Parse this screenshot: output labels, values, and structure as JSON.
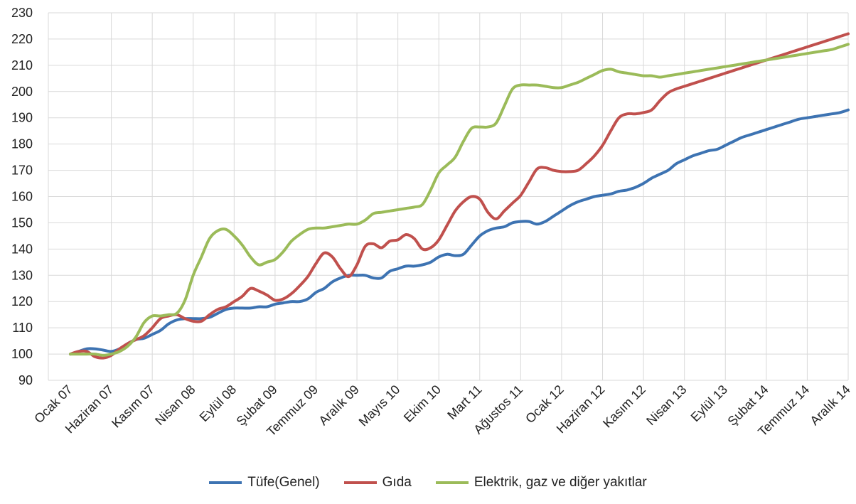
{
  "chart_data": {
    "type": "line",
    "ylim": [
      90,
      230
    ],
    "yticks": [
      90,
      100,
      110,
      120,
      130,
      140,
      150,
      160,
      170,
      180,
      190,
      200,
      210,
      220,
      230
    ],
    "x_tick_labels": [
      "Ocak 07",
      "Haziran 07",
      "Kasım 07",
      "Nisan 08",
      "Eylül 08",
      "Şubat 09",
      "Temmuz 09",
      "Aralık 09",
      "Mayıs 10",
      "Ekim 10",
      "Mart 11",
      "Ağustos 11",
      "Ocak 12",
      "Haziran 12",
      "Kasım 12",
      "Nisan 13",
      "Eylül 13",
      "Şubat 14",
      "Temmuz 14",
      "Aralık 14"
    ],
    "x_tick_months": [
      0,
      5,
      10,
      15,
      20,
      25,
      30,
      35,
      40,
      45,
      50,
      55,
      60,
      65,
      70,
      75,
      80,
      85,
      90,
      95
    ],
    "months": 96,
    "grid": true,
    "legend_position": "bottom",
    "series": [
      {
        "name": "Tüfe(Genel)",
        "color": "#3d73b2",
        "values": [
          100,
          101,
          102,
          102,
          101.5,
          101,
          102,
          104,
          105.5,
          106,
          107.5,
          109,
          111.5,
          113,
          113.5,
          113.5,
          113.5,
          114,
          115.5,
          117,
          117.5,
          117.5,
          117.5,
          118,
          118,
          119,
          119.5,
          120,
          120,
          121,
          123.5,
          125,
          127.5,
          129,
          130,
          130,
          130,
          129,
          129,
          131.5,
          132.5,
          133.5,
          133.5,
          134,
          135,
          137,
          138,
          137.5,
          138,
          141.5,
          145,
          147,
          148,
          148.5,
          150,
          150.5,
          150.5,
          149.5,
          150.5,
          152.5,
          154.5,
          156.5,
          158,
          159,
          160,
          160.5,
          161,
          162,
          162.5,
          163.5,
          165,
          167,
          168.5,
          170,
          172.5,
          174,
          175.5,
          176.5,
          177.5,
          178,
          179.5,
          181,
          182.5,
          183.5,
          184.5,
          185.5,
          186.5,
          187.5,
          188.5,
          189.5,
          190,
          190.5,
          191,
          191.5,
          192,
          193
        ]
      },
      {
        "name": "Gıda",
        "color": "#c0504d",
        "values": [
          100,
          101,
          101,
          99,
          98.5,
          99.5,
          102,
          104,
          105.5,
          107,
          110,
          113.5,
          114.5,
          115,
          113.5,
          112.5,
          112.5,
          115,
          117,
          118,
          120,
          122,
          125,
          124,
          122.5,
          120.5,
          121,
          123,
          126,
          129.5,
          134.5,
          138.5,
          137,
          132.5,
          129.5,
          134,
          141,
          142,
          140.5,
          143,
          143.5,
          145.5,
          144,
          140,
          140.5,
          143.5,
          149,
          154.5,
          158,
          160,
          159,
          154,
          151.5,
          154.5,
          157.5,
          160.5,
          165.5,
          170.5,
          171,
          170,
          169.5,
          169.5,
          170,
          172.5,
          175.5,
          179.5,
          185,
          190,
          191.5,
          191.5,
          192,
          193,
          196.5,
          199.5,
          201,
          202,
          203,
          204,
          205,
          206,
          207,
          208,
          209,
          210,
          211,
          212,
          213,
          214,
          215,
          216,
          217,
          218,
          219,
          220,
          221,
          222
        ]
      },
      {
        "name": "Elektrik, gaz ve diğer yakıtlar",
        "color": "#9bbb59",
        "values": [
          100,
          100,
          100,
          100,
          99.5,
          100,
          101,
          103,
          106.5,
          112,
          114.5,
          114.5,
          115,
          115.5,
          120.5,
          130,
          137,
          144,
          147,
          147.5,
          145,
          141.5,
          137,
          134,
          135,
          136,
          139,
          143,
          145.5,
          147.5,
          148,
          148,
          148.5,
          149,
          149.5,
          149.5,
          151,
          153.5,
          154,
          154.5,
          155,
          155.5,
          156,
          157,
          162.5,
          169,
          172,
          175,
          181,
          186,
          186.5,
          186.5,
          188,
          194.5,
          201,
          202.5,
          202.5,
          202.5,
          202,
          201.5,
          201.5,
          202.5,
          203.5,
          205,
          206.5,
          208,
          208.5,
          207.5,
          207,
          206.5,
          206,
          206,
          205.5,
          206,
          206.5,
          207,
          207.5,
          208,
          208.5,
          209,
          209.5,
          210,
          210.5,
          211,
          211.5,
          212,
          212.5,
          213,
          213.5,
          214,
          214.5,
          215,
          215.5,
          216,
          217,
          218
        ]
      }
    ]
  }
}
